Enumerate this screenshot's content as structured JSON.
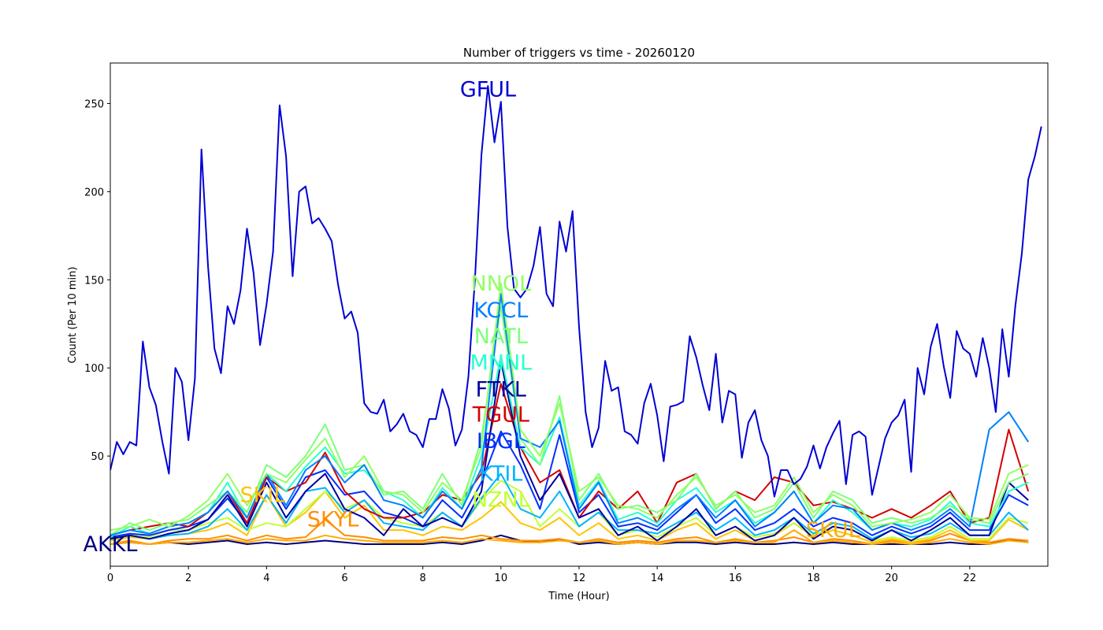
{
  "chart_data": {
    "type": "line",
    "title": "Number of triggers vs time - 20260120",
    "xlabel": "Time (Hour)",
    "ylabel": "Count (Per 10 min)",
    "xlim": [
      0,
      24
    ],
    "ylim": [
      -12.5,
      273
    ],
    "xticks": [
      0,
      2,
      4,
      6,
      8,
      10,
      12,
      14,
      16,
      18,
      20,
      22
    ],
    "yticks": [
      50,
      100,
      150,
      200,
      250
    ],
    "grid": false,
    "series": [
      {
        "name": "AKKL",
        "color": "#00007f",
        "x_step_hours": 0.5,
        "label_at": [
          0,
          0
        ],
        "values": [
          0,
          1,
          0,
          1,
          0,
          1,
          2,
          0,
          1,
          0,
          1,
          2,
          1,
          0,
          0,
          0,
          0,
          1,
          0,
          2,
          5,
          2,
          1,
          3,
          0,
          1,
          0,
          1,
          0,
          1,
          1,
          0,
          1,
          0,
          0,
          1,
          0,
          1,
          0,
          0,
          0,
          0,
          0,
          1,
          0,
          0,
          3,
          1
        ]
      },
      {
        "name": "SKYL",
        "color": "#ff8d00",
        "x_step_hours": 0.5,
        "label_at": [
          5.7,
          14
        ],
        "values": [
          0,
          2,
          0,
          2,
          3,
          3,
          5,
          2,
          5,
          3,
          4,
          14,
          5,
          4,
          2,
          2,
          2,
          4,
          3,
          5,
          3,
          2,
          2,
          3,
          1,
          3,
          1,
          2,
          1,
          3,
          4,
          1,
          3,
          1,
          2,
          4,
          1,
          3,
          2,
          0,
          2,
          1,
          2,
          6,
          2,
          1,
          3,
          2
        ]
      },
      {
        "name": "SKUL",
        "color": "#ffab00",
        "x_step_hours": 0.5,
        "label_at": [
          18.5,
          8
        ],
        "values": [
          0,
          1,
          0,
          1,
          1,
          2,
          3,
          1,
          3,
          2,
          2,
          5,
          3,
          2,
          1,
          1,
          1,
          2,
          1,
          3,
          2,
          1,
          1,
          2,
          1,
          2,
          0,
          1,
          0,
          2,
          2,
          1,
          2,
          1,
          1,
          8,
          1,
          2,
          1,
          0,
          1,
          0,
          1,
          3,
          1,
          0,
          2,
          1
        ]
      },
      {
        "name": "SKIL",
        "color": "#ffc400",
        "x_step_hours": 0.5,
        "label_at": [
          3.9,
          28
        ],
        "values": [
          2,
          4,
          3,
          5,
          6,
          8,
          12,
          5,
          28,
          10,
          18,
          30,
          15,
          22,
          8,
          8,
          5,
          10,
          8,
          15,
          24,
          12,
          8,
          15,
          5,
          12,
          3,
          5,
          2,
          8,
          12,
          3,
          8,
          2,
          5,
          12,
          4,
          8,
          5,
          1,
          3,
          1,
          3,
          8,
          2,
          2,
          14,
          8
        ]
      },
      {
        "name": "NZNL",
        "color": "#c1ff36",
        "x_step_hours": 0.5,
        "label_at": [
          10,
          36
        ],
        "values": [
          3,
          6,
          4,
          8,
          8,
          12,
          15,
          8,
          12,
          10,
          20,
          30,
          20,
          25,
          15,
          12,
          10,
          18,
          10,
          25,
          36,
          30,
          10,
          20,
          10,
          18,
          5,
          8,
          4,
          10,
          15,
          5,
          10,
          4,
          6,
          12,
          5,
          10,
          8,
          2,
          4,
          2,
          4,
          10,
          3,
          3,
          15,
          12
        ]
      },
      {
        "name": "KTIL",
        "color": "#00b4ff",
        "x_step_hours": 0.5,
        "label_at": [
          10,
          40
        ],
        "values": [
          3,
          5,
          3,
          5,
          6,
          10,
          20,
          8,
          28,
          12,
          30,
          32,
          18,
          25,
          12,
          10,
          8,
          18,
          10,
          26,
          40,
          20,
          15,
          30,
          10,
          18,
          8,
          8,
          6,
          12,
          18,
          8,
          15,
          5,
          8,
          15,
          6,
          12,
          10,
          3,
          8,
          4,
          6,
          12,
          5,
          5,
          18,
          8
        ]
      },
      {
        "name": "IBGL",
        "color": "#0030ff",
        "x_step_hours": 0.5,
        "label_at": [
          10,
          64
        ],
        "values": [
          4,
          6,
          5,
          8,
          10,
          14,
          26,
          12,
          38,
          20,
          38,
          42,
          28,
          30,
          18,
          15,
          10,
          25,
          15,
          35,
          64,
          45,
          20,
          62,
          18,
          28,
          10,
          12,
          8,
          18,
          28,
          12,
          20,
          8,
          12,
          20,
          10,
          15,
          12,
          5,
          10,
          6,
          10,
          18,
          8,
          8,
          28,
          22
        ]
      },
      {
        "name": "TGUL",
        "color": "#d40000",
        "x_step_hours": 0.5,
        "label_at": [
          10,
          91
        ],
        "values": [
          5,
          8,
          10,
          12,
          10,
          18,
          30,
          12,
          38,
          30,
          35,
          52,
          30,
          20,
          15,
          15,
          18,
          28,
          25,
          40,
          91,
          55,
          35,
          42,
          15,
          30,
          20,
          30,
          12,
          35,
          40,
          20,
          30,
          25,
          38,
          35,
          22,
          24,
          20,
          15,
          20,
          15,
          22,
          30,
          12,
          15,
          65,
          30
        ]
      },
      {
        "name": "FTKL",
        "color": "#0000a0",
        "x_step_hours": 0.5,
        "label_at": [
          10,
          104
        ],
        "values": [
          3,
          5,
          3,
          6,
          8,
          14,
          28,
          10,
          35,
          15,
          30,
          40,
          20,
          15,
          5,
          20,
          10,
          15,
          10,
          30,
          104,
          50,
          25,
          40,
          15,
          20,
          5,
          10,
          2,
          10,
          20,
          5,
          10,
          2,
          5,
          15,
          3,
          10,
          8,
          2,
          8,
          2,
          8,
          15,
          5,
          5,
          35,
          25
        ]
      },
      {
        "name": "MNNL",
        "color": "#29ffce",
        "x_step_hours": 0.5,
        "label_at": [
          10,
          107
        ],
        "values": [
          4,
          10,
          6,
          10,
          12,
          18,
          35,
          15,
          40,
          30,
          44,
          55,
          40,
          42,
          30,
          25,
          15,
          32,
          20,
          50,
          107,
          55,
          45,
          72,
          22,
          36,
          14,
          18,
          12,
          25,
          32,
          18,
          25,
          12,
          18,
          30,
          12,
          25,
          18,
          8,
          12,
          10,
          14,
          24,
          12,
          10,
          30,
          35
        ]
      },
      {
        "name": "NATL",
        "color": "#7dff7a",
        "x_step_hours": 0.5,
        "label_at": [
          10,
          134
        ],
        "values": [
          5,
          12,
          8,
          12,
          14,
          22,
          30,
          18,
          45,
          38,
          50,
          68,
          42,
          45,
          28,
          30,
          20,
          40,
          22,
          60,
          135,
          60,
          45,
          84,
          25,
          40,
          20,
          22,
          18,
          25,
          40,
          20,
          30,
          15,
          20,
          35,
          15,
          30,
          25,
          12,
          15,
          12,
          15,
          22,
          14,
          12,
          35,
          40
        ]
      },
      {
        "name": "KCCL",
        "color": "#0080ff",
        "x_step_hours": 0.5,
        "label_at": [
          10,
          142
        ],
        "values": [
          5,
          8,
          6,
          10,
          12,
          18,
          30,
          15,
          40,
          22,
          42,
          50,
          35,
          45,
          25,
          22,
          15,
          30,
          20,
          43,
          142,
          60,
          55,
          70,
          20,
          35,
          12,
          15,
          10,
          20,
          28,
          15,
          25,
          10,
          18,
          30,
          12,
          22,
          20,
          8,
          12,
          8,
          12,
          20,
          10,
          65,
          75,
          58
        ]
      },
      {
        "name": "NNOL",
        "color": "#92ff65",
        "x_step_hours": 0.5,
        "label_at": [
          10,
          148
        ],
        "values": [
          8,
          10,
          14,
          10,
          16,
          25,
          40,
          22,
          40,
          35,
          48,
          60,
          38,
          50,
          30,
          28,
          18,
          35,
          25,
          55,
          148,
          65,
          50,
          80,
          30,
          38,
          22,
          20,
          15,
          28,
          38,
          22,
          28,
          18,
          22,
          38,
          18,
          28,
          22,
          10,
          12,
          14,
          18,
          28,
          15,
          14,
          40,
          45
        ]
      },
      {
        "name": "GFUL",
        "color": "#0000d4",
        "x_step_hours": 0.16667,
        "label_at": [
          9.67,
          258
        ],
        "values": [
          42,
          58,
          51,
          58,
          56,
          115,
          89,
          79,
          58,
          40,
          100,
          92,
          59,
          94,
          224,
          158,
          111,
          97,
          135,
          125,
          144,
          179,
          154,
          113,
          136,
          166,
          249,
          220,
          152,
          200,
          203,
          182,
          185,
          179,
          172,
          147,
          128,
          132,
          120,
          80,
          75,
          74,
          82,
          64,
          68,
          74,
          64,
          62,
          55,
          71,
          71,
          88,
          77,
          56,
          65,
          95,
          150,
          221,
          260,
          228,
          251,
          180,
          145,
          140,
          145,
          158,
          180,
          142,
          135,
          183,
          166,
          189,
          123,
          75,
          55,
          66,
          104,
          87,
          89,
          64,
          62,
          57,
          80,
          91,
          73,
          47,
          78,
          79,
          81,
          118,
          106,
          90,
          76,
          108,
          69,
          87,
          85,
          49,
          69,
          76,
          59,
          50,
          27,
          42,
          42,
          34,
          37,
          44,
          56,
          43,
          55,
          63,
          70,
          34,
          62,
          64,
          61,
          28,
          44,
          60,
          69,
          73,
          82,
          41,
          100,
          85,
          112,
          125,
          101,
          83,
          121,
          111,
          108,
          95,
          117,
          100,
          75,
          122,
          95,
          135,
          165,
          207,
          220,
          237
        ]
      }
    ]
  }
}
